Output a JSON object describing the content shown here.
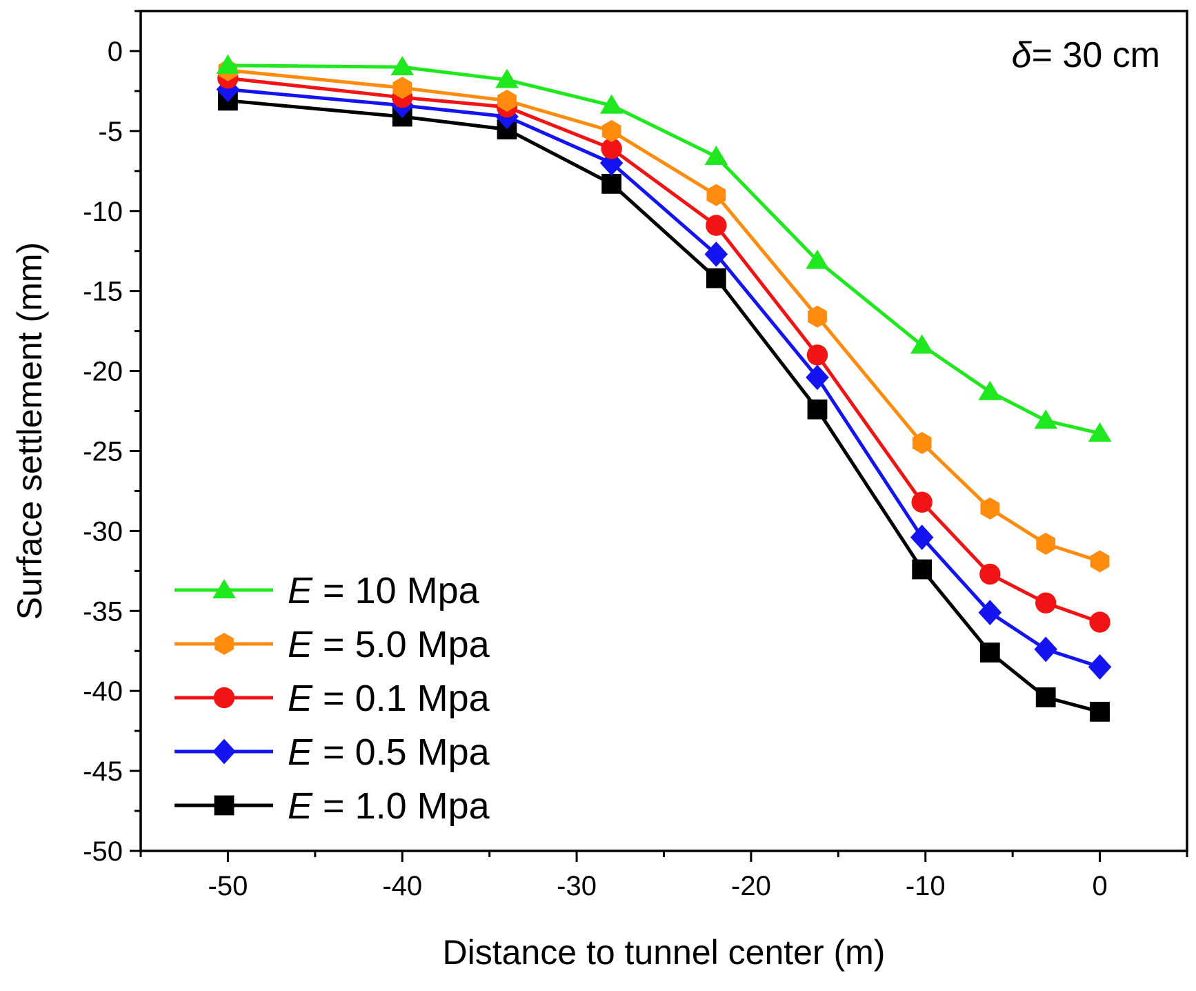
{
  "chart_data": {
    "type": "line",
    "xlabel": "Distance to tunnel center (m)",
    "ylabel": "Surface settlement (mm)",
    "xlim": [
      -55,
      5
    ],
    "ylim": [
      -50,
      2.5
    ],
    "xticks": [
      -50,
      -40,
      -30,
      -20,
      -10,
      0
    ],
    "xtick_labels": [
      "-50",
      "-40",
      "-30",
      "-20",
      "-10",
      "0"
    ],
    "yticks": [
      0,
      -5,
      -10,
      -15,
      -20,
      -25,
      -30,
      -35,
      -40,
      -45,
      -50
    ],
    "ytick_labels": [
      "0",
      "-5",
      "-10",
      "-15",
      "-20",
      "-25",
      "-30",
      "-35",
      "-40",
      "-45",
      "-50"
    ],
    "grid": false,
    "legend_position": "bottom-left",
    "annotation": {
      "symbol": "δ",
      "text": "= 30 cm"
    },
    "x": [
      -50,
      -40,
      -34,
      -28,
      -22,
      -16.2,
      -10.2,
      -6.3,
      -3.1,
      0
    ],
    "series": [
      {
        "name_italic": "E",
        "name_rest": " = 10 Mpa",
        "color": "#1fe81f",
        "marker": "triangle",
        "values": [
          -0.9,
          -1.0,
          -1.8,
          -3.4,
          -6.6,
          -13.1,
          -18.4,
          -21.3,
          -23.1,
          -23.9
        ]
      },
      {
        "name_italic": "E",
        "name_rest": " = 5.0 Mpa",
        "color": "#ff8c0f",
        "marker": "hexagon",
        "values": [
          -1.2,
          -2.3,
          -3.1,
          -5.0,
          -9.0,
          -16.6,
          -24.5,
          -28.6,
          -30.8,
          -31.9
        ]
      },
      {
        "name_italic": "E",
        "name_rest": " = 0.1 Mpa",
        "color": "#f01414",
        "marker": "circle",
        "values": [
          -1.7,
          -2.9,
          -3.5,
          -6.1,
          -10.9,
          -19.0,
          -28.2,
          -32.7,
          -34.5,
          -35.7
        ]
      },
      {
        "name_italic": "E",
        "name_rest": " = 0.5 Mpa",
        "color": "#1414f0",
        "marker": "diamond",
        "values": [
          -2.4,
          -3.4,
          -4.1,
          -7.0,
          -12.7,
          -20.4,
          -30.4,
          -35.1,
          -37.4,
          -38.5
        ]
      },
      {
        "name_italic": "E",
        "name_rest": " = 1.0 Mpa",
        "color": "#000000",
        "marker": "square",
        "values": [
          -3.1,
          -4.1,
          -4.9,
          -8.3,
          -14.2,
          -22.4,
          -32.4,
          -37.6,
          -40.4,
          -41.3
        ]
      }
    ]
  }
}
